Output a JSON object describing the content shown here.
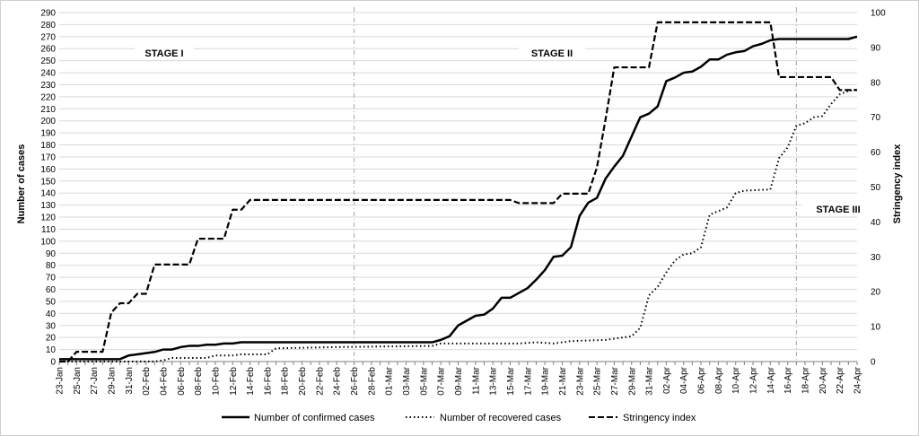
{
  "chart_data": {
    "type": "line",
    "title": "",
    "xlabel": "",
    "ylabel": "Number of cases",
    "y2label": "Stringency index",
    "ylim": [
      0,
      290
    ],
    "y2lim": [
      0,
      100
    ],
    "grid": true,
    "legend_position": "bottom",
    "x_start": "23-Jan",
    "x_tick_labels": [
      "23-Jan",
      "25-Jan",
      "27-Jan",
      "29-Jan",
      "31-Jan",
      "02-Feb",
      "04-Feb",
      "06-Feb",
      "08-Feb",
      "10-Feb",
      "12-Feb",
      "14-Feb",
      "16-Feb",
      "18-Feb",
      "20-Feb",
      "22-Feb",
      "24-Feb",
      "26-Feb",
      "28-Feb",
      "01-Mar",
      "03-Mar",
      "05-Mar",
      "07-Mar",
      "09-Mar",
      "11-Mar",
      "13-Mar",
      "15-Mar",
      "17-Mar",
      "19-Mar",
      "21-Mar",
      "23-Mar",
      "25-Mar",
      "27-Mar",
      "29-Mar",
      "31-Mar",
      "02-Apr",
      "04-Apr",
      "06-Apr",
      "08-Apr",
      "10-Apr",
      "12-Apr",
      "14-Apr",
      "16-Apr",
      "18-Apr",
      "20-Apr",
      "22-Apr",
      "24-Apr"
    ],
    "y_ticks": [
      0,
      10,
      20,
      30,
      40,
      50,
      60,
      70,
      80,
      90,
      100,
      110,
      120,
      130,
      140,
      150,
      160,
      170,
      180,
      190,
      200,
      210,
      220,
      230,
      240,
      250,
      260,
      270,
      280,
      290
    ],
    "y2_ticks": [
      0,
      10,
      20,
      30,
      40,
      50,
      60,
      70,
      80,
      90,
      100
    ],
    "stage_labels": [
      "STAGE I",
      "STAGE II",
      "STAGE III"
    ],
    "stage_dividers": [
      "26-Feb",
      "17-Apr"
    ],
    "series": [
      {
        "name": "Number of confirmed cases",
        "axis": "left",
        "style": "solid",
        "color": "#000000",
        "points": [
          [
            "23-Jan",
            2
          ],
          [
            "30-Jan",
            2
          ],
          [
            "31-Jan",
            5
          ],
          [
            "01-Feb",
            6
          ],
          [
            "02-Feb",
            7
          ],
          [
            "03-Feb",
            8
          ],
          [
            "04-Feb",
            10
          ],
          [
            "05-Feb",
            10
          ],
          [
            "06-Feb",
            12
          ],
          [
            "07-Feb",
            13
          ],
          [
            "08-Feb",
            13
          ],
          [
            "09-Feb",
            14
          ],
          [
            "10-Feb",
            14
          ],
          [
            "11-Feb",
            15
          ],
          [
            "12-Feb",
            15
          ],
          [
            "13-Feb",
            16
          ],
          [
            "06-Mar",
            16
          ],
          [
            "07-Mar",
            18
          ],
          [
            "08-Mar",
            21
          ],
          [
            "09-Mar",
            30
          ],
          [
            "10-Mar",
            34
          ],
          [
            "11-Mar",
            38
          ],
          [
            "12-Mar",
            39
          ],
          [
            "13-Mar",
            44
          ],
          [
            "14-Mar",
            53
          ],
          [
            "15-Mar",
            53
          ],
          [
            "16-Mar",
            57
          ],
          [
            "17-Mar",
            61
          ],
          [
            "18-Mar",
            68
          ],
          [
            "19-Mar",
            76
          ],
          [
            "20-Mar",
            87
          ],
          [
            "21-Mar",
            88
          ],
          [
            "22-Mar",
            95
          ],
          [
            "23-Mar",
            121
          ],
          [
            "24-Mar",
            132
          ],
          [
            "25-Mar",
            136
          ],
          [
            "26-Mar",
            152
          ],
          [
            "27-Mar",
            162
          ],
          [
            "28-Mar",
            171
          ],
          [
            "29-Mar",
            187
          ],
          [
            "30-Mar",
            203
          ],
          [
            "31-Mar",
            206
          ],
          [
            "01-Apr",
            212
          ],
          [
            "02-Apr",
            233
          ],
          [
            "03-Apr",
            236
          ],
          [
            "04-Apr",
            240
          ],
          [
            "05-Apr",
            241
          ],
          [
            "06-Apr",
            245
          ],
          [
            "07-Apr",
            251
          ],
          [
            "08-Apr",
            251
          ],
          [
            "09-Apr",
            255
          ],
          [
            "10-Apr",
            257
          ],
          [
            "11-Apr",
            258
          ],
          [
            "12-Apr",
            262
          ],
          [
            "13-Apr",
            264
          ],
          [
            "14-Apr",
            267
          ],
          [
            "15-Apr",
            268
          ],
          [
            "23-Apr",
            268
          ],
          [
            "24-Apr",
            270
          ]
        ]
      },
      {
        "name": "Number of recovered cases",
        "axis": "left",
        "style": "dotted",
        "color": "#000000",
        "points": [
          [
            "23-Jan",
            0
          ],
          [
            "03-Feb",
            0
          ],
          [
            "04-Feb",
            1
          ],
          [
            "05-Feb",
            3
          ],
          [
            "09-Feb",
            3
          ],
          [
            "10-Feb",
            5
          ],
          [
            "12-Feb",
            5
          ],
          [
            "13-Feb",
            6
          ],
          [
            "16-Feb",
            6
          ],
          [
            "17-Feb",
            11
          ],
          [
            "24-Feb",
            12
          ],
          [
            "06-Mar",
            13
          ],
          [
            "07-Mar",
            15
          ],
          [
            "16-Mar",
            15
          ],
          [
            "18-Mar",
            16
          ],
          [
            "20-Mar",
            15
          ],
          [
            "22-Mar",
            17
          ],
          [
            "26-Mar",
            18
          ],
          [
            "27-Mar",
            19
          ],
          [
            "29-Mar",
            21
          ],
          [
            "30-Mar",
            28
          ],
          [
            "31-Mar",
            55
          ],
          [
            "01-Apr",
            62
          ],
          [
            "02-Apr",
            74
          ],
          [
            "03-Apr",
            84
          ],
          [
            "04-Apr",
            89
          ],
          [
            "05-Apr",
            90
          ],
          [
            "06-Apr",
            95
          ],
          [
            "07-Apr",
            122
          ],
          [
            "08-Apr",
            125
          ],
          [
            "09-Apr",
            128
          ],
          [
            "10-Apr",
            140
          ],
          [
            "11-Apr",
            142
          ],
          [
            "14-Apr",
            143
          ],
          [
            "15-Apr",
            169
          ],
          [
            "16-Apr",
            178
          ],
          [
            "17-Apr",
            196
          ],
          [
            "18-Apr",
            198
          ],
          [
            "19-Apr",
            203
          ],
          [
            "20-Apr",
            204
          ],
          [
            "21-Apr",
            214
          ],
          [
            "22-Apr",
            222
          ],
          [
            "23-Apr",
            225
          ],
          [
            "24-Apr",
            226
          ]
        ]
      },
      {
        "name": "Stringency index",
        "axis": "right",
        "style": "dashed",
        "color": "#000000",
        "points": [
          [
            "23-Jan",
            0
          ],
          [
            "24-Jan",
            0
          ],
          [
            "25-Jan",
            2.8
          ],
          [
            "28-Jan",
            2.8
          ],
          [
            "29-Jan",
            14
          ],
          [
            "30-Jan",
            16.7
          ],
          [
            "31-Jan",
            16.7
          ],
          [
            "01-Feb",
            19.4
          ],
          [
            "02-Feb",
            19.4
          ],
          [
            "03-Feb",
            27.8
          ],
          [
            "07-Feb",
            27.8
          ],
          [
            "08-Feb",
            35.2
          ],
          [
            "11-Feb",
            35.2
          ],
          [
            "12-Feb",
            43.5
          ],
          [
            "13-Feb",
            43.5
          ],
          [
            "14-Feb",
            46.3
          ],
          [
            "15-Mar",
            46.3
          ],
          [
            "16-Mar",
            45.4
          ],
          [
            "20-Mar",
            45.4
          ],
          [
            "21-Mar",
            48.1
          ],
          [
            "24-Mar",
            48.1
          ],
          [
            "25-Mar",
            55.6
          ],
          [
            "26-Mar",
            69.4
          ],
          [
            "27-Mar",
            84.3
          ],
          [
            "31-Mar",
            84.3
          ],
          [
            "01-Apr",
            97.2
          ],
          [
            "14-Apr",
            97.2
          ],
          [
            "15-Apr",
            81.5
          ],
          [
            "21-Apr",
            81.5
          ],
          [
            "22-Apr",
            77.8
          ],
          [
            "24-Apr",
            77.8
          ]
        ]
      }
    ]
  }
}
